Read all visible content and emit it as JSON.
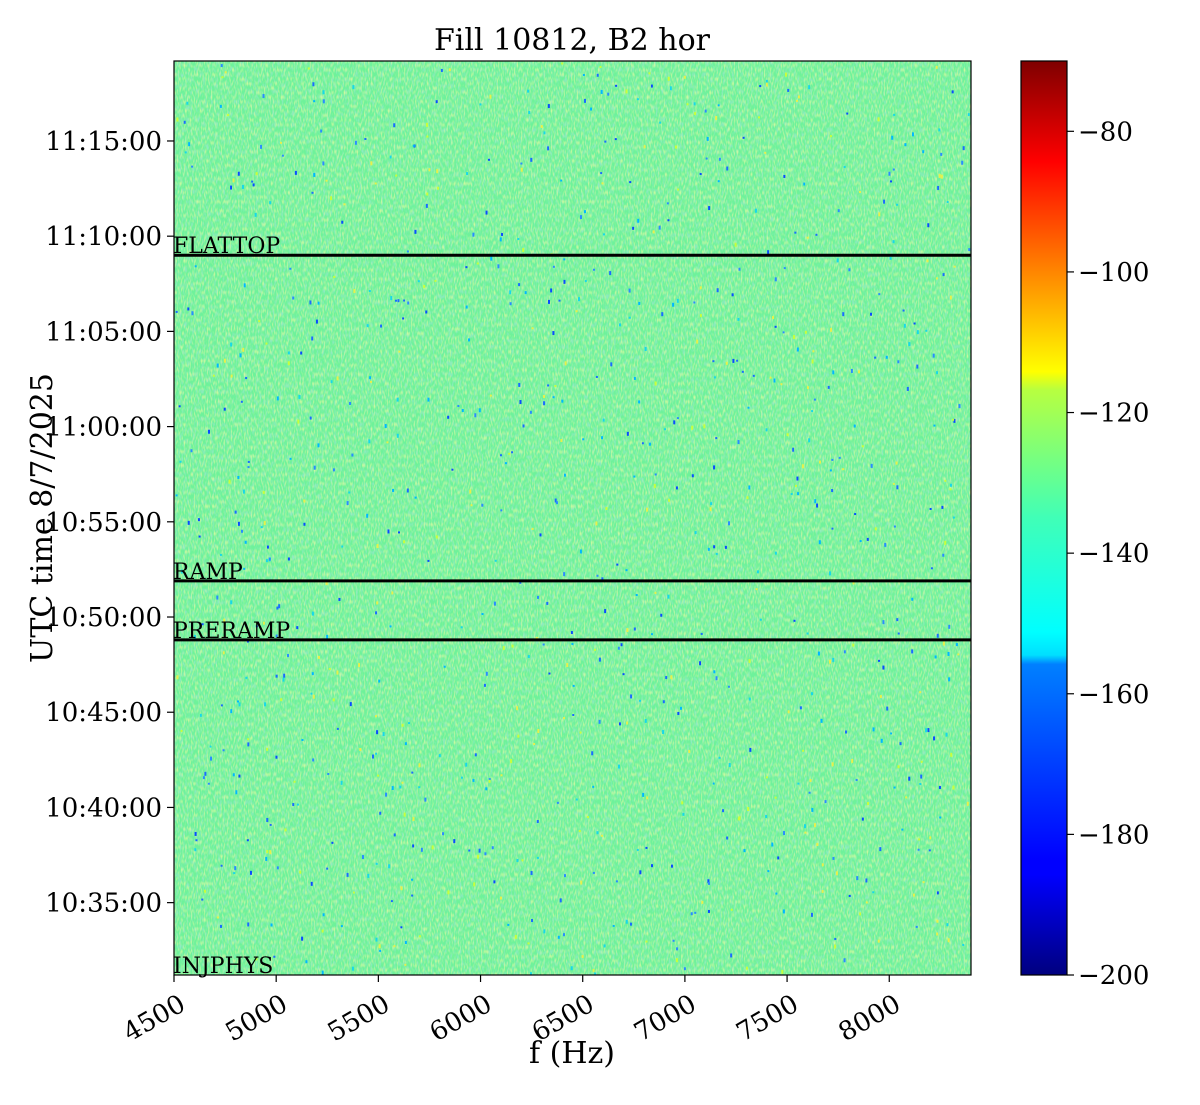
{
  "chart_data": {
    "type": "heatmap",
    "title": "Fill 10812, B2 hor",
    "xlabel": "f (Hz)",
    "ylabel": "UTC time 8/7/2025",
    "x_ticks": [
      "4500",
      "5000",
      "5500",
      "6000",
      "6500",
      "7000",
      "7500",
      "8000"
    ],
    "x_tick_values": [
      4500,
      5000,
      5500,
      6000,
      6500,
      7000,
      7500,
      8000
    ],
    "xlim": [
      4500,
      8400
    ],
    "y_ticks": [
      "10:35:00",
      "10:40:00",
      "10:45:00",
      "10:50:00",
      "10:55:00",
      "11:00:00",
      "11:05:00",
      "11:10:00",
      "11:15:00"
    ],
    "y_tick_minutes": [
      35,
      40,
      45,
      50,
      55,
      60,
      65,
      70,
      75
    ],
    "ylim_minutes": [
      31.2,
      79.2
    ],
    "colorbar": {
      "colormap": "jet",
      "range": [
        -200,
        -70
      ],
      "ticks": [
        "−200",
        "−180",
        "−160",
        "−140",
        "−120",
        "−100",
        "−80"
      ],
      "tick_values": [
        -200,
        -180,
        -160,
        -140,
        -120,
        -100,
        -80
      ]
    },
    "background_level": -140,
    "phases": [
      {
        "label": "INJPHYS",
        "minute": 31.2
      },
      {
        "label": "PRERAMP",
        "minute": 48.8
      },
      {
        "label": "RAMP",
        "minute": 51.9
      },
      {
        "label": "FLATTOP",
        "minute": 69.0
      }
    ],
    "grid": false
  }
}
